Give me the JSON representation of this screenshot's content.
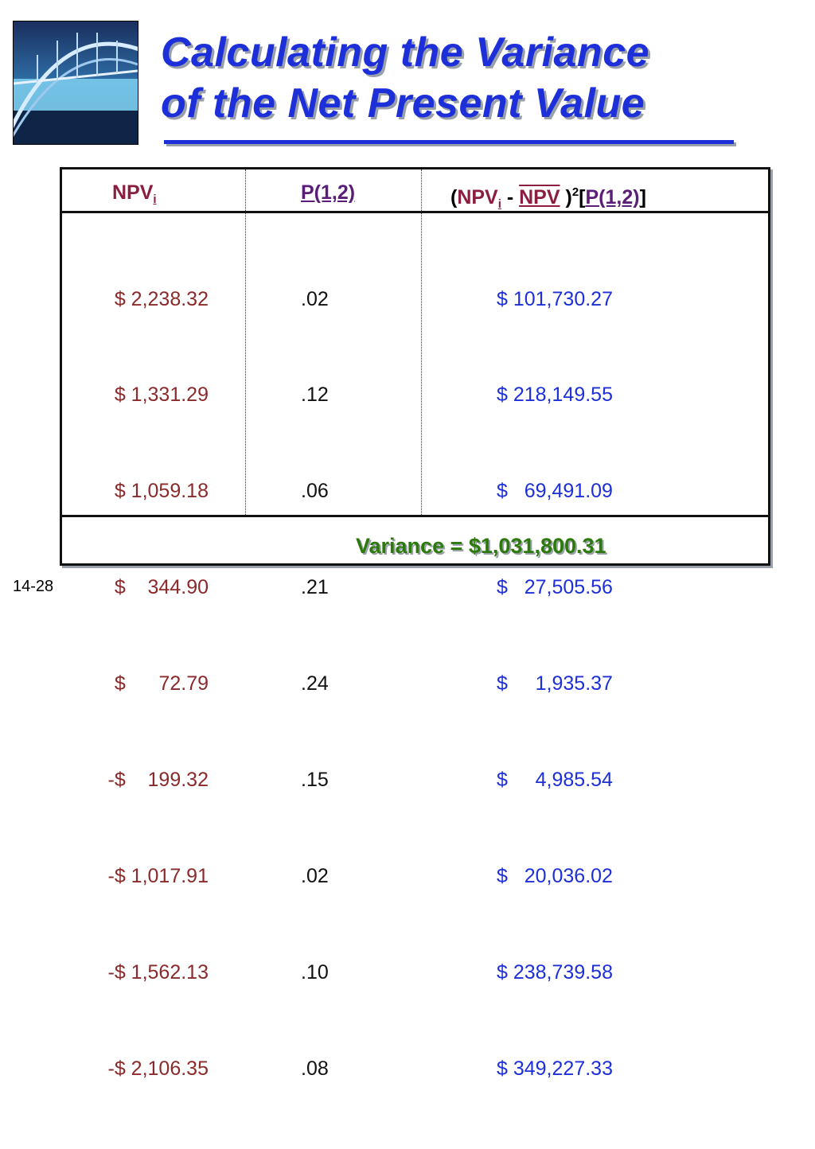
{
  "slide": {
    "title_line1": "Calculating the Variance",
    "title_line2": "of the Net Present Value",
    "number": "14-28"
  },
  "logo": {
    "icon": "bridge-photo-icon"
  },
  "table": {
    "header": {
      "col1": {
        "text": "NPV",
        "sub": "i"
      },
      "col2": "P(1,2)",
      "col3": {
        "open": "(",
        "npv": "NPV",
        "sub": "i",
        "minus": " - ",
        "mean": "NPV",
        "close": " )",
        "exp": "2",
        "bopen": "[",
        "p": "P(1,2)",
        "bclose": "]"
      }
    },
    "col1": [
      "$ 2,238.32",
      "$ 1,331.29",
      "$ 1,059.18",
      "$    344.90",
      "$      72.79",
      "-$    199.32",
      "-$ 1,017.91",
      "-$ 1,562.13",
      "-$ 2,106.35"
    ],
    "col2": [
      ".02",
      ".12",
      ".06",
      ".21",
      ".24",
      ".15",
      ".02",
      ".10",
      ".08"
    ],
    "col3": [
      "$ 101,730.27",
      "$ 218,149.55",
      "$   69,491.09",
      "$   27,505.56",
      "$     1,935.37",
      "$     4,985.54",
      "$   20,036.02",
      "$ 238,739.58",
      "$ 349,227.33"
    ],
    "variance": "Variance = $1,031,800.31"
  },
  "colors": {
    "title": "#1c2fd9",
    "npv_values": "#8b2a2a",
    "result_values": "#1c2fd9",
    "variance": "#2c7a0c"
  }
}
